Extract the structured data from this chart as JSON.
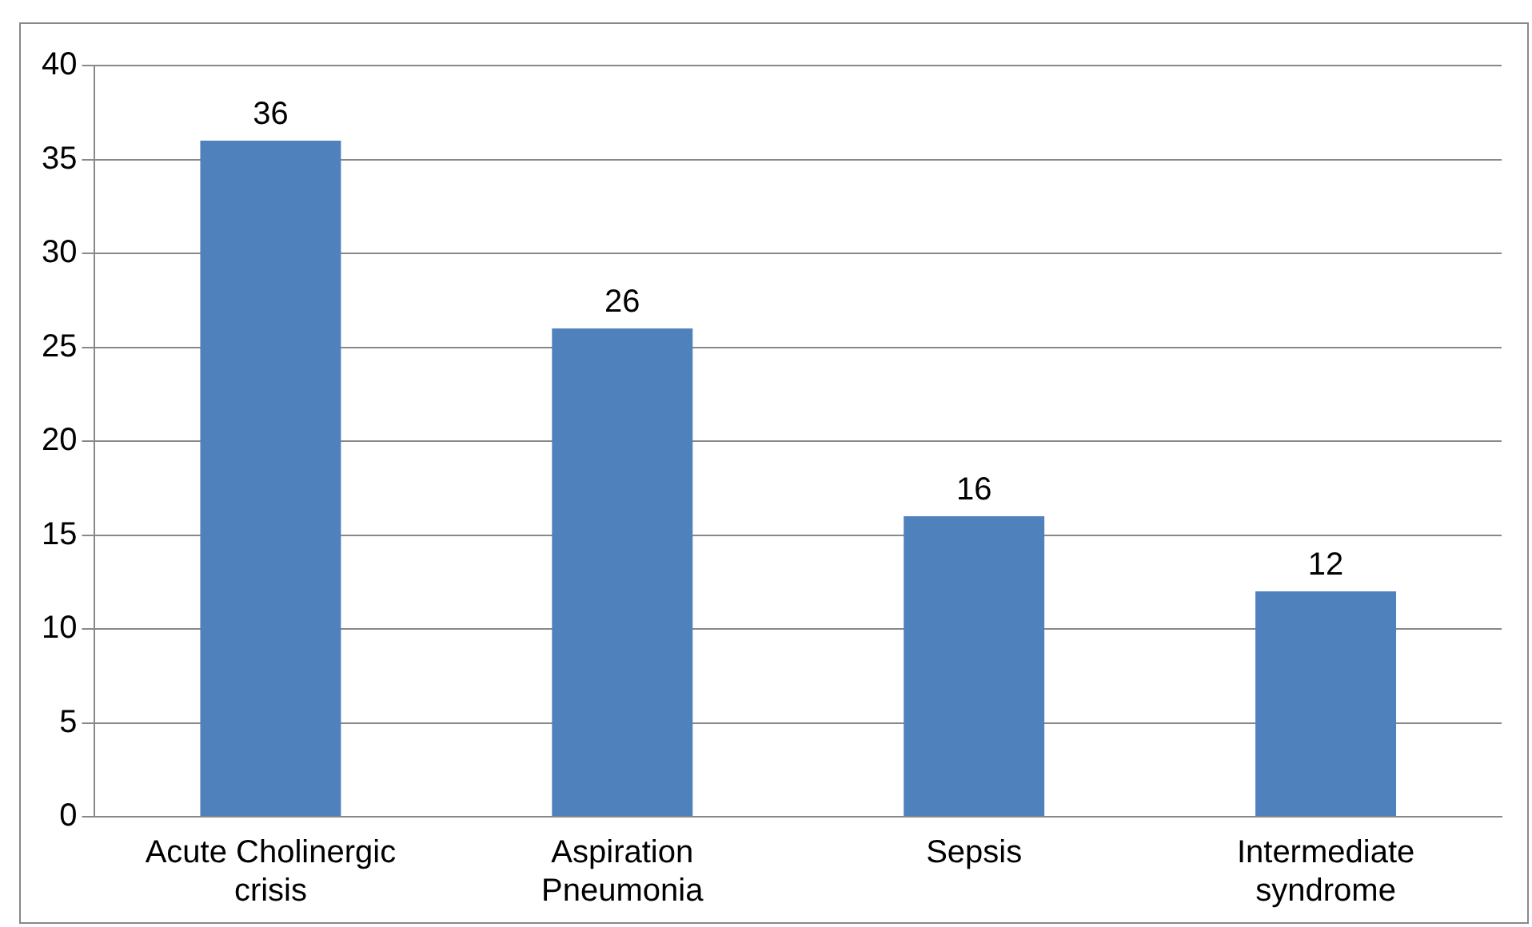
{
  "chart_data": {
    "type": "bar",
    "categories": [
      "Acute Cholinergic crisis",
      "Aspiration Pneumonia",
      "Sepsis",
      "Intermediate syndrome"
    ],
    "values": [
      36,
      26,
      16,
      12
    ],
    "color": "#4f81bd",
    "ylim": [
      0,
      40
    ],
    "yticks": [
      0,
      5,
      10,
      15,
      20,
      25,
      30,
      35,
      40
    ],
    "grid": "y",
    "data_labels": true,
    "legend": false
  }
}
